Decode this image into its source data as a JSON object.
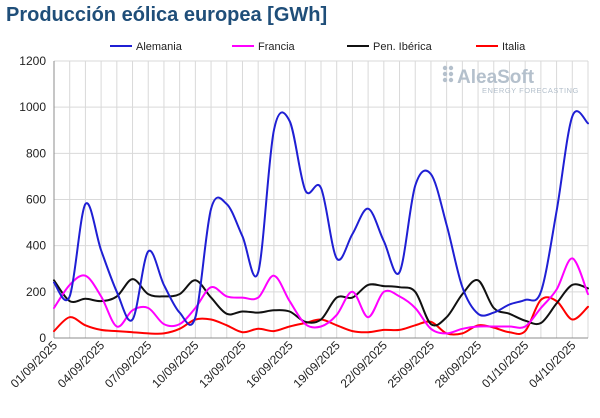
{
  "chart_data": {
    "type": "line",
    "title": "Producción eólica europea [GWh]",
    "xlabel": "",
    "ylabel": "",
    "ylim": [
      0,
      1200
    ],
    "yticks": [
      0,
      200,
      400,
      600,
      800,
      1000,
      1200
    ],
    "grid": true,
    "legend_position": "top",
    "x_tick_labels": [
      "01/09/2025",
      "04/09/2025",
      "07/09/2025",
      "10/09/2025",
      "13/09/2025",
      "16/09/2025",
      "19/09/2025",
      "22/09/2025",
      "25/09/2025",
      "28/09/2025",
      "01/10/2025",
      "04/10/2025"
    ],
    "x": [
      "01/09",
      "02/09",
      "03/09",
      "04/09",
      "05/09",
      "06/09",
      "07/09",
      "08/09",
      "09/09",
      "10/09",
      "11/09",
      "12/09",
      "13/09",
      "14/09",
      "15/09",
      "16/09",
      "17/09",
      "18/09",
      "19/09",
      "20/09",
      "21/09",
      "22/09",
      "23/09",
      "24/09",
      "25/09",
      "26/09",
      "27/09",
      "28/09",
      "29/09",
      "30/09",
      "01/10",
      "02/10",
      "03/10",
      "04/10",
      "05/10"
    ],
    "series": [
      {
        "name": "Alemania",
        "color": "#1f1fd4",
        "values": [
          240,
          180,
          580,
          380,
          200,
          80,
          375,
          230,
          110,
          90,
          560,
          580,
          440,
          285,
          900,
          940,
          640,
          650,
          345,
          450,
          560,
          420,
          285,
          660,
          710,
          490,
          220,
          105,
          110,
          145,
          165,
          200,
          550,
          960,
          930
        ]
      },
      {
        "name": "Francia",
        "color": "#ff00ff",
        "values": [
          130,
          230,
          270,
          180,
          50,
          120,
          130,
          60,
          60,
          130,
          220,
          180,
          175,
          175,
          270,
          160,
          60,
          50,
          100,
          200,
          90,
          200,
          180,
          130,
          40,
          20,
          40,
          50,
          50,
          50,
          50,
          130,
          210,
          345,
          190
        ]
      },
      {
        "name": "Pen. Ibérica",
        "color": "#111111",
        "values": [
          250,
          160,
          170,
          160,
          180,
          255,
          190,
          180,
          190,
          250,
          175,
          105,
          115,
          110,
          120,
          115,
          70,
          80,
          175,
          175,
          230,
          225,
          220,
          200,
          60,
          90,
          190,
          250,
          130,
          105,
          75,
          65,
          150,
          230,
          215
        ]
      },
      {
        "name": "Italia",
        "color": "#ff0000",
        "values": [
          30,
          90,
          55,
          35,
          30,
          25,
          20,
          20,
          40,
          80,
          80,
          55,
          25,
          40,
          30,
          50,
          65,
          80,
          55,
          30,
          25,
          35,
          35,
          55,
          70,
          20,
          20,
          55,
          45,
          25,
          30,
          165,
          160,
          80,
          135
        ]
      }
    ]
  },
  "logo": {
    "name": "AleaSoft",
    "tagline": "ENERGY FORECASTING",
    "icon": "aleasoft-dots-icon"
  }
}
